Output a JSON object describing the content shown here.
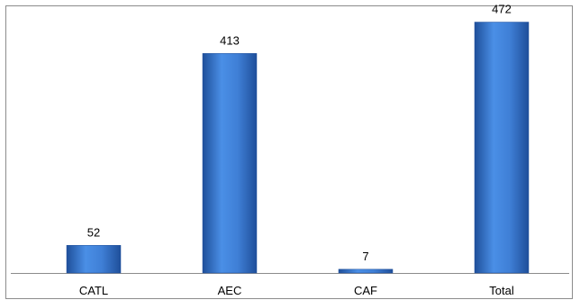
{
  "chart_data": {
    "type": "bar",
    "categories": [
      "CATL",
      "AEC",
      "CAF",
      "Total"
    ],
    "values": [
      52,
      413,
      7,
      472
    ],
    "ylim": [
      0,
      500
    ],
    "grid": false,
    "legend": "none",
    "bar_color": "#3f7fd6",
    "bar_dark_color": "#1f4f9a",
    "axis_color": "#8c8c8c"
  }
}
